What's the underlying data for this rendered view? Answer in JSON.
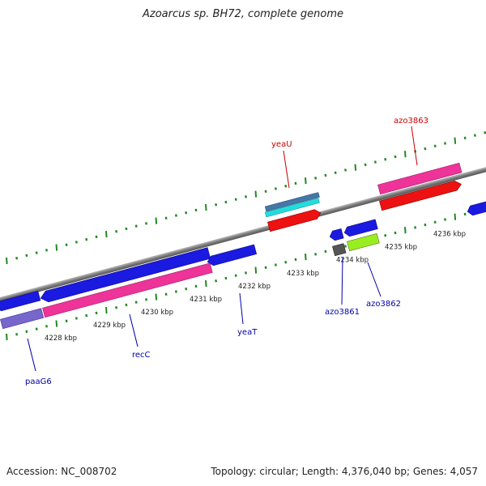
{
  "title": "Azoarcus sp. BH72, complete genome",
  "footer": {
    "accession": "Accession: NC_008702",
    "topology": "Topology: circular; Length: 4,376,040 bp; Genes: 4,057"
  },
  "scale": {
    "tick_labels": [
      "4228 kbp",
      "4229 kbp",
      "4230 kbp",
      "4231 kbp",
      "4232 kbp",
      "4233 kbp",
      "4234 kbp",
      "4235 kbp",
      "4236 kbp"
    ]
  },
  "genes": {
    "forward": [
      {
        "name": "yeaU",
        "color": "#ee1111"
      },
      {
        "name": "azo3863",
        "color": "#ee1111"
      }
    ],
    "reverse": [
      {
        "name": "paaG6",
        "color": "#1111cc"
      },
      {
        "name": "recC",
        "color": "#1111cc"
      },
      {
        "name": "yeaT",
        "color": "#1111cc"
      },
      {
        "name": "azo3861",
        "color": "#1111cc"
      },
      {
        "name": "azo3862",
        "color": "#1111cc"
      }
    ]
  },
  "colors": {
    "backbone": "#8a8a8a",
    "tick": "#228822",
    "forward_gene": "#ee1111",
    "reverse_gene": "#1111dd",
    "cds_pink": "#ee3399",
    "cds_steel": "#4477aa",
    "cds_cyan": "#22dddd",
    "cds_purple": "#7766cc",
    "cds_lime": "#99ee22",
    "cds_gray": "#555555"
  }
}
